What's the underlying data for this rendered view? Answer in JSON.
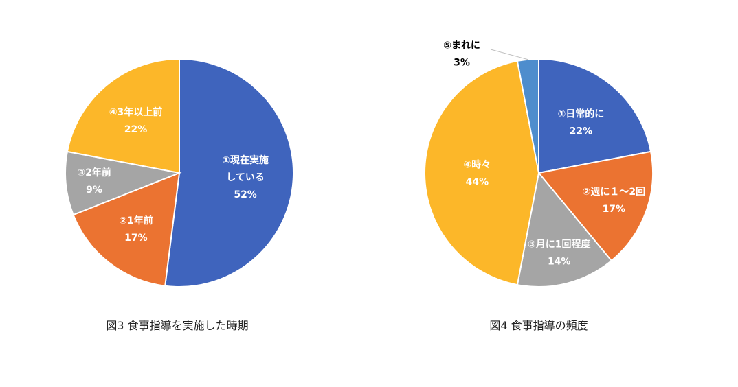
{
  "chart_data": [
    {
      "type": "pie",
      "title": "図3  食事指導を実施した時期",
      "start_angle_deg": 0,
      "slices": [
        {
          "lines": [
            "①現在実施",
            "している",
            "52%"
          ],
          "value": 52,
          "color": "#3F64BD"
        },
        {
          "lines": [
            "②1年前",
            "17%"
          ],
          "value": 17,
          "color": "#EB7331"
        },
        {
          "lines": [
            "③2年前",
            "9%"
          ],
          "value": 9,
          "color": "#A5A5A5"
        },
        {
          "lines": [
            "④3年以上前",
            "22%"
          ],
          "value": 22,
          "color": "#FCB729"
        }
      ]
    },
    {
      "type": "pie",
      "title": "図4 食事指導の頻度",
      "start_angle_deg": 0,
      "slices": [
        {
          "lines": [
            "①日常的に",
            "22%"
          ],
          "value": 22,
          "color": "#3F64BD"
        },
        {
          "lines": [
            "②週に１～2回",
            "17%"
          ],
          "value": 17,
          "color": "#EB7331"
        },
        {
          "lines": [
            "③月に1回程度",
            "14%"
          ],
          "value": 14,
          "color": "#A5A5A5"
        },
        {
          "lines": [
            "④時々",
            "44%"
          ],
          "value": 44,
          "color": "#FCB729"
        },
        {
          "lines": [
            "⑤まれに",
            "3%"
          ],
          "value": 3,
          "color": "#4E8DCD"
        }
      ]
    }
  ]
}
